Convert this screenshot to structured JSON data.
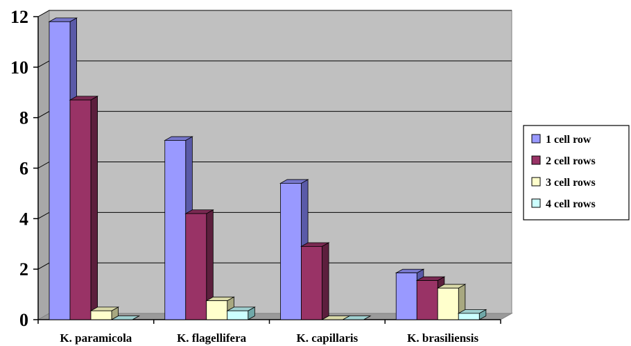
{
  "chart_data": {
    "type": "bar",
    "categories": [
      "K. paramicola",
      "K. flagellifera",
      "K. capillaris",
      "K. brasiliensis"
    ],
    "series": [
      {
        "name": "1 cell row",
        "values": [
          11.8,
          7.1,
          5.4,
          1.85
        ],
        "color": "#9999FF",
        "side": "#5A5AA8",
        "top": "#7777CC"
      },
      {
        "name": "2 cell rows",
        "values": [
          8.7,
          4.2,
          2.9,
          1.55
        ],
        "color": "#993366",
        "side": "#5C1F3D",
        "top": "#7A2952"
      },
      {
        "name": "3 cell rows",
        "values": [
          0.35,
          0.75,
          0,
          1.25
        ],
        "color": "#FFFFCC",
        "side": "#A8A880",
        "top": "#D8D8A8"
      },
      {
        "name": "4 cell rows",
        "values": [
          0,
          0.35,
          0,
          0.25
        ],
        "color": "#CCFFFF",
        "side": "#70A8A8",
        "top": "#A0D0D0"
      }
    ],
    "yticks": [
      0,
      2,
      4,
      6,
      8,
      10,
      12
    ],
    "ylim": [
      0,
      12
    ],
    "grid": true,
    "legend": "right",
    "plot_background": "#C0C0C0"
  }
}
